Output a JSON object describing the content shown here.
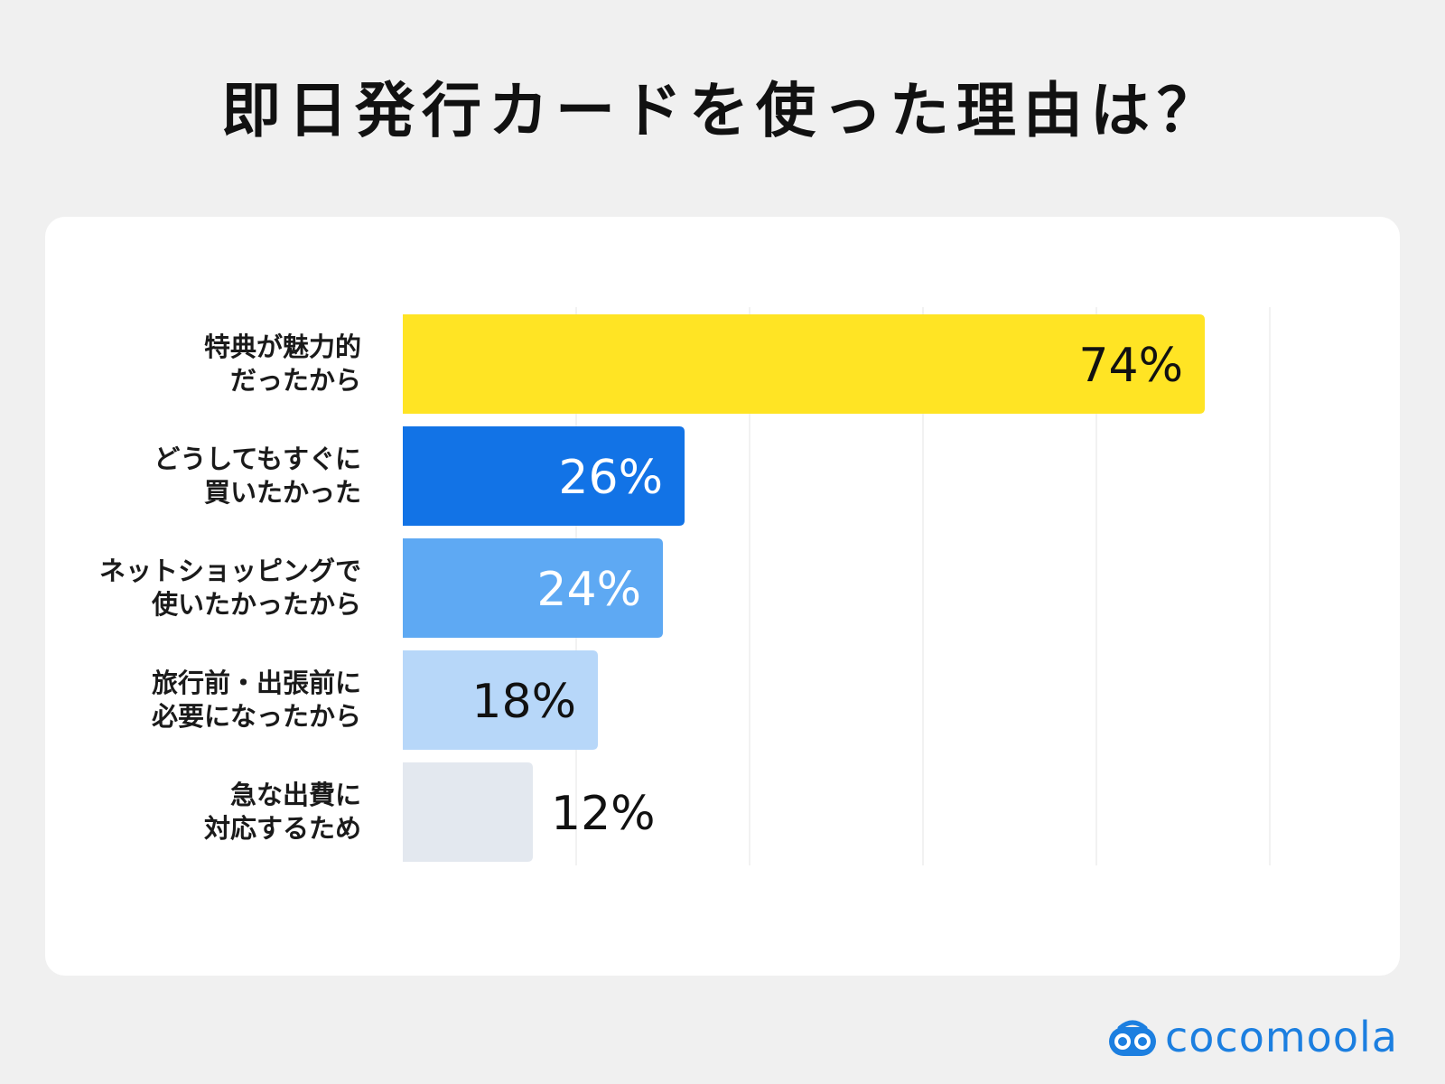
{
  "title": "即日発行カードを使った理由は？",
  "brand": {
    "name": "cocomoola",
    "icon": "cocomoola-logo-icon",
    "color": "#1c7fe0"
  },
  "chart_data": {
    "type": "bar",
    "orientation": "horizontal",
    "title": "即日発行カードを使った理由は？",
    "xlabel": "",
    "ylabel": "",
    "xlim": [
      0,
      100
    ],
    "unit": "%",
    "grid": true,
    "legend": "none",
    "categories": [
      [
        "特典が魅力的",
        "だったから"
      ],
      [
        "どうしてもすぐに",
        "買いたかった"
      ],
      [
        "ネットショッピングで",
        "使いたかったから"
      ],
      [
        "旅行前・出張前に",
        "必要になったから"
      ],
      [
        "急な出費に",
        "対応するため"
      ]
    ],
    "values": [
      74,
      26,
      24,
      18,
      12
    ],
    "value_labels": [
      "74%",
      "26%",
      "24%",
      "18%",
      "12%"
    ],
    "colors": [
      "#ffe424",
      "#1273e6",
      "#5ea9f3",
      "#b7d7f9",
      "#e3e8ef"
    ],
    "label_colors": [
      "#111111",
      "#ffffff",
      "#ffffff",
      "#111111",
      "#111111"
    ]
  }
}
